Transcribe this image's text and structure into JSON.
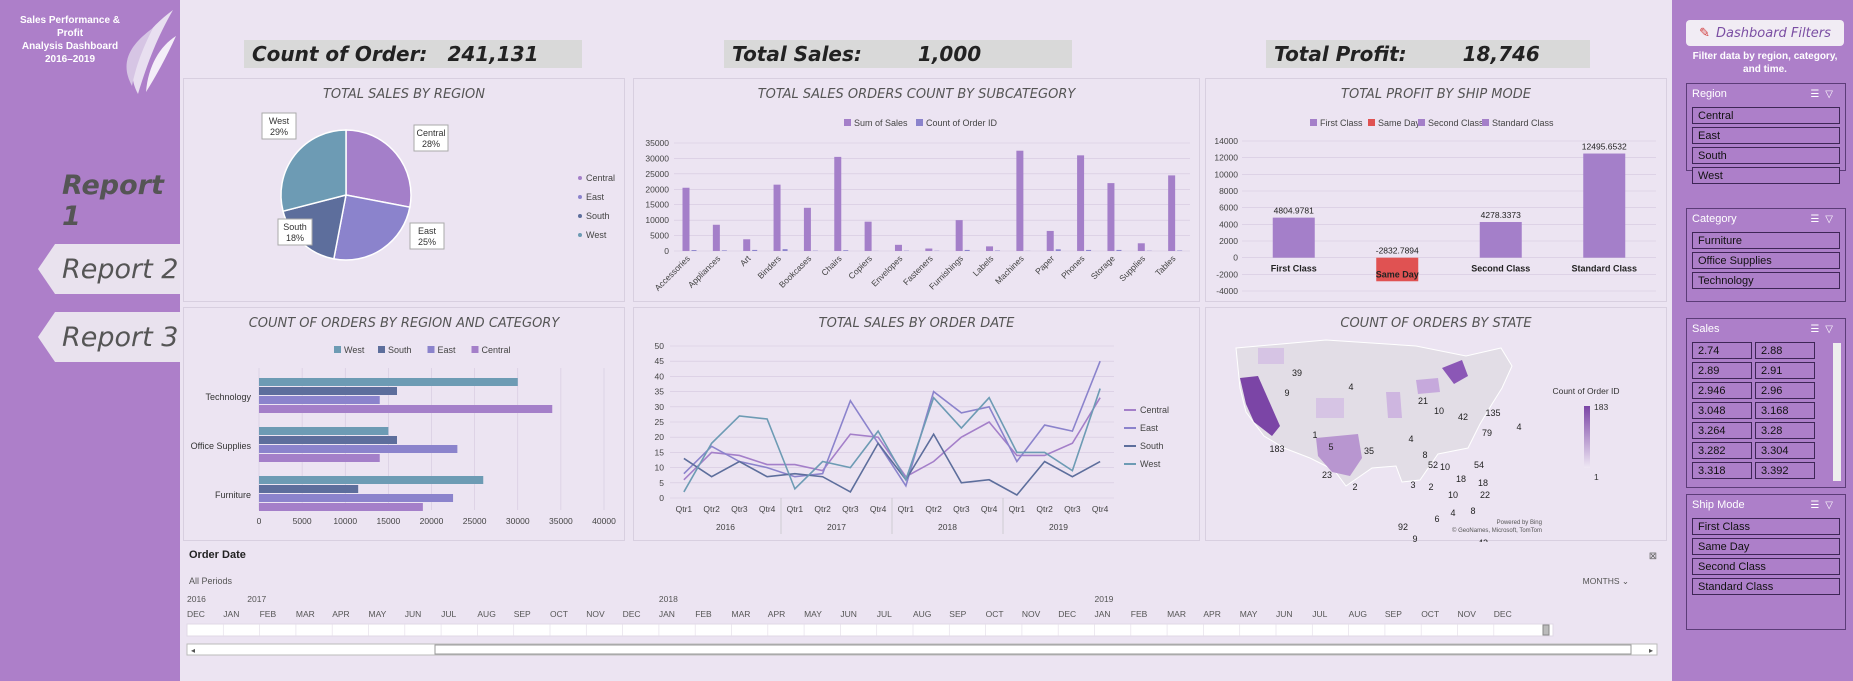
{
  "brand": {
    "line1": "Sales Performance & Profit",
    "line2": "Analysis Dashboard",
    "line3": "2016–2019"
  },
  "nav": [
    {
      "label": "Report 1"
    },
    {
      "label": "Report 2"
    },
    {
      "label": "Report 3"
    }
  ],
  "kpis": [
    {
      "label": "Count of Order:",
      "value": "241,131"
    },
    {
      "label": "Total Sales:",
      "value": "1,000"
    },
    {
      "label": "Total Profit:",
      "value": "18,746"
    }
  ],
  "colors": {
    "central": "#a47fc9",
    "east": "#8b83cc",
    "south": "#5d6e9c",
    "west": "#6d9bb4",
    "sales": "#a47fc9",
    "same_day": "#e05252",
    "sidebar": "#ad7fc9"
  },
  "charts": {
    "region": {
      "title": "TOTAL SALES BY REGION",
      "chart_data": {
        "type": "pie",
        "categories": [
          "Central",
          "East",
          "South",
          "West"
        ],
        "values": [
          28,
          25,
          18,
          29
        ],
        "labels": [
          "Central\n28%",
          "East\n25%",
          "South\n18%",
          "West\n29%"
        ],
        "legend": [
          "Central",
          "East",
          "South",
          "West"
        ]
      }
    },
    "subcategory": {
      "title": "TOTAL SALES ORDERS COUNT BY SUBCATEGORY",
      "chart_data": {
        "type": "bar",
        "categories": [
          "Accessories",
          "Appliances",
          "Art",
          "Binders",
          "Bookcases",
          "Chairs",
          "Copiers",
          "Envelopes",
          "Fasteners",
          "Furnishings",
          "Labels",
          "Machines",
          "Paper",
          "Phones",
          "Storage",
          "Supplies",
          "Tables"
        ],
        "series": [
          {
            "name": "Sum of Sales",
            "values": [
              20500,
              8500,
              3800,
              21500,
              14000,
              30500,
              9500,
              2000,
              800,
              10000,
              1500,
              32500,
              6500,
              31000,
              22000,
              2500,
              24500
            ]
          },
          {
            "name": "Count of Order ID",
            "values": [
              300,
              200,
              350,
              600,
              100,
              250,
              30,
              100,
              80,
              350,
              150,
              50,
              550,
              350,
              350,
              80,
              150
            ]
          }
        ],
        "ylim": [
          0,
          35000
        ],
        "yticks": [
          "0",
          "5000",
          "10000",
          "15000",
          "20000",
          "25000",
          "30000",
          "35000"
        ]
      }
    },
    "shipmode": {
      "title": "TOTAL PROFIT BY SHIP MODE",
      "chart_data": {
        "type": "bar",
        "categories": [
          "First Class",
          "Same Day",
          "Second Class",
          "Standard Class"
        ],
        "values": [
          4804.9781,
          -2832.7894,
          4278.3373,
          12495.6532
        ],
        "value_labels": [
          "4804.9781",
          "-2832.7894",
          "4278.3373",
          "12495.6532"
        ],
        "legend": [
          "First Class",
          "Same Day",
          "Second Class",
          "Standard Class"
        ],
        "ylim": [
          -4000,
          14000
        ],
        "yticks": [
          "-4000",
          "-2000",
          "0",
          "2000",
          "4000",
          "6000",
          "8000",
          "10000",
          "12000",
          "14000"
        ]
      }
    },
    "regioncat": {
      "title": "COUNT OF ORDERS BY REGION AND CATEGORY",
      "chart_data": {
        "type": "bar",
        "orientation": "horizontal",
        "categories": [
          "Technology",
          "Office Supplies",
          "Furniture"
        ],
        "series": [
          {
            "name": "West",
            "values": [
              30000,
              15000,
              26000
            ]
          },
          {
            "name": "South",
            "values": [
              16000,
              16000,
              11500
            ]
          },
          {
            "name": "East",
            "values": [
              14000,
              23000,
              22500
            ]
          },
          {
            "name": "Central",
            "values": [
              34000,
              14000,
              19000
            ]
          }
        ],
        "xlim": [
          0,
          40000
        ],
        "xticks": [
          "0",
          "5000",
          "10000",
          "15000",
          "20000",
          "25000",
          "30000",
          "35000",
          "40000"
        ]
      }
    },
    "orderdate": {
      "title": "TOTAL SALES BY ORDER DATE",
      "chart_data": {
        "type": "line",
        "x": [
          "Qtr1",
          "Qtr2",
          "Qtr3",
          "Qtr4",
          "Qtr1",
          "Qtr2",
          "Qtr3",
          "Qtr4",
          "Qtr1",
          "Qtr2",
          "Qtr3",
          "Qtr4",
          "Qtr1",
          "Qtr2",
          "Qtr3",
          "Qtr4"
        ],
        "years": [
          "2016",
          "2017",
          "2018",
          "2019"
        ],
        "series": [
          {
            "name": "Central",
            "values": [
              6,
              15,
              14,
              11,
              11,
              9,
              21,
              20,
              7,
              12,
              20,
              25,
              14,
              14,
              18,
              33
            ]
          },
          {
            "name": "East",
            "values": [
              8,
              17,
              12,
              10,
              7,
              8,
              32,
              18,
              4,
              35,
              28,
              30,
              12,
              24,
              22,
              45
            ]
          },
          {
            "name": "South",
            "values": [
              13,
              7,
              12,
              7,
              8,
              7,
              2,
              18,
              6,
              21,
              5,
              6,
              1,
              12,
              7,
              12
            ]
          },
          {
            "name": "West",
            "values": [
              2,
              18,
              27,
              26,
              3,
              12,
              10,
              22,
              6,
              33,
              23,
              33,
              15,
              15,
              9,
              36
            ]
          }
        ],
        "ylim": [
          0,
          50
        ],
        "yticks": [
          "0",
          "5",
          "10",
          "15",
          "20",
          "25",
          "30",
          "35",
          "40",
          "45",
          "50"
        ]
      }
    },
    "state": {
      "title": "COUNT OF ORDERS BY STATE",
      "numbers": [
        "39",
        "4",
        "9",
        "21",
        "10",
        "42",
        "135",
        "4",
        "79",
        "183",
        "1",
        "5",
        "35",
        "4",
        "8",
        "52",
        "10",
        "54",
        "18",
        "23",
        "2",
        "3",
        "2",
        "18",
        "22",
        "10",
        "92",
        "9",
        "6",
        "4",
        "8",
        "42"
      ],
      "legend_title": "Count of Order ID",
      "legend_max": "183",
      "legend_min": "1",
      "credit1": "Powered by Bing",
      "credit2": "© GeoNames, Microsoft, TomTom"
    }
  },
  "timeline": {
    "title": "Order Date",
    "all_periods": "All Periods",
    "unit": "MONTHS",
    "years": [
      "2016",
      "2017",
      "2018",
      "2019"
    ],
    "months": [
      "DEC",
      "JAN",
      "FEB",
      "MAR",
      "APR",
      "MAY",
      "JUN",
      "JUL",
      "AUG",
      "SEP",
      "OCT",
      "NOV",
      "DEC",
      "JAN",
      "FEB",
      "MAR",
      "APR",
      "MAY",
      "JUN",
      "JUL",
      "AUG",
      "SEP",
      "OCT",
      "NOV",
      "DEC",
      "JAN",
      "FEB",
      "MAR",
      "APR",
      "MAY",
      "JUN",
      "JUL",
      "AUG",
      "SEP",
      "OCT",
      "NOV",
      "DEC"
    ]
  },
  "filters": {
    "title": "Dashboard Filters",
    "subtitle": "Filter data by region, category, and time.",
    "region": {
      "label": "Region",
      "items": [
        "Central",
        "East",
        "South",
        "West"
      ]
    },
    "category": {
      "label": "Category",
      "items": [
        "Furniture",
        "Office Supplies",
        "Technology"
      ]
    },
    "sales": {
      "label": "Sales",
      "items": [
        "2.74",
        "2.88",
        "2.89",
        "2.91",
        "2.946",
        "2.96",
        "3.048",
        "3.168",
        "3.264",
        "3.28",
        "3.282",
        "3.304",
        "3.318",
        "3.392"
      ]
    },
    "shipmode": {
      "label": "Ship Mode",
      "items": [
        "First Class",
        "Same Day",
        "Second Class",
        "Standard Class"
      ]
    }
  }
}
